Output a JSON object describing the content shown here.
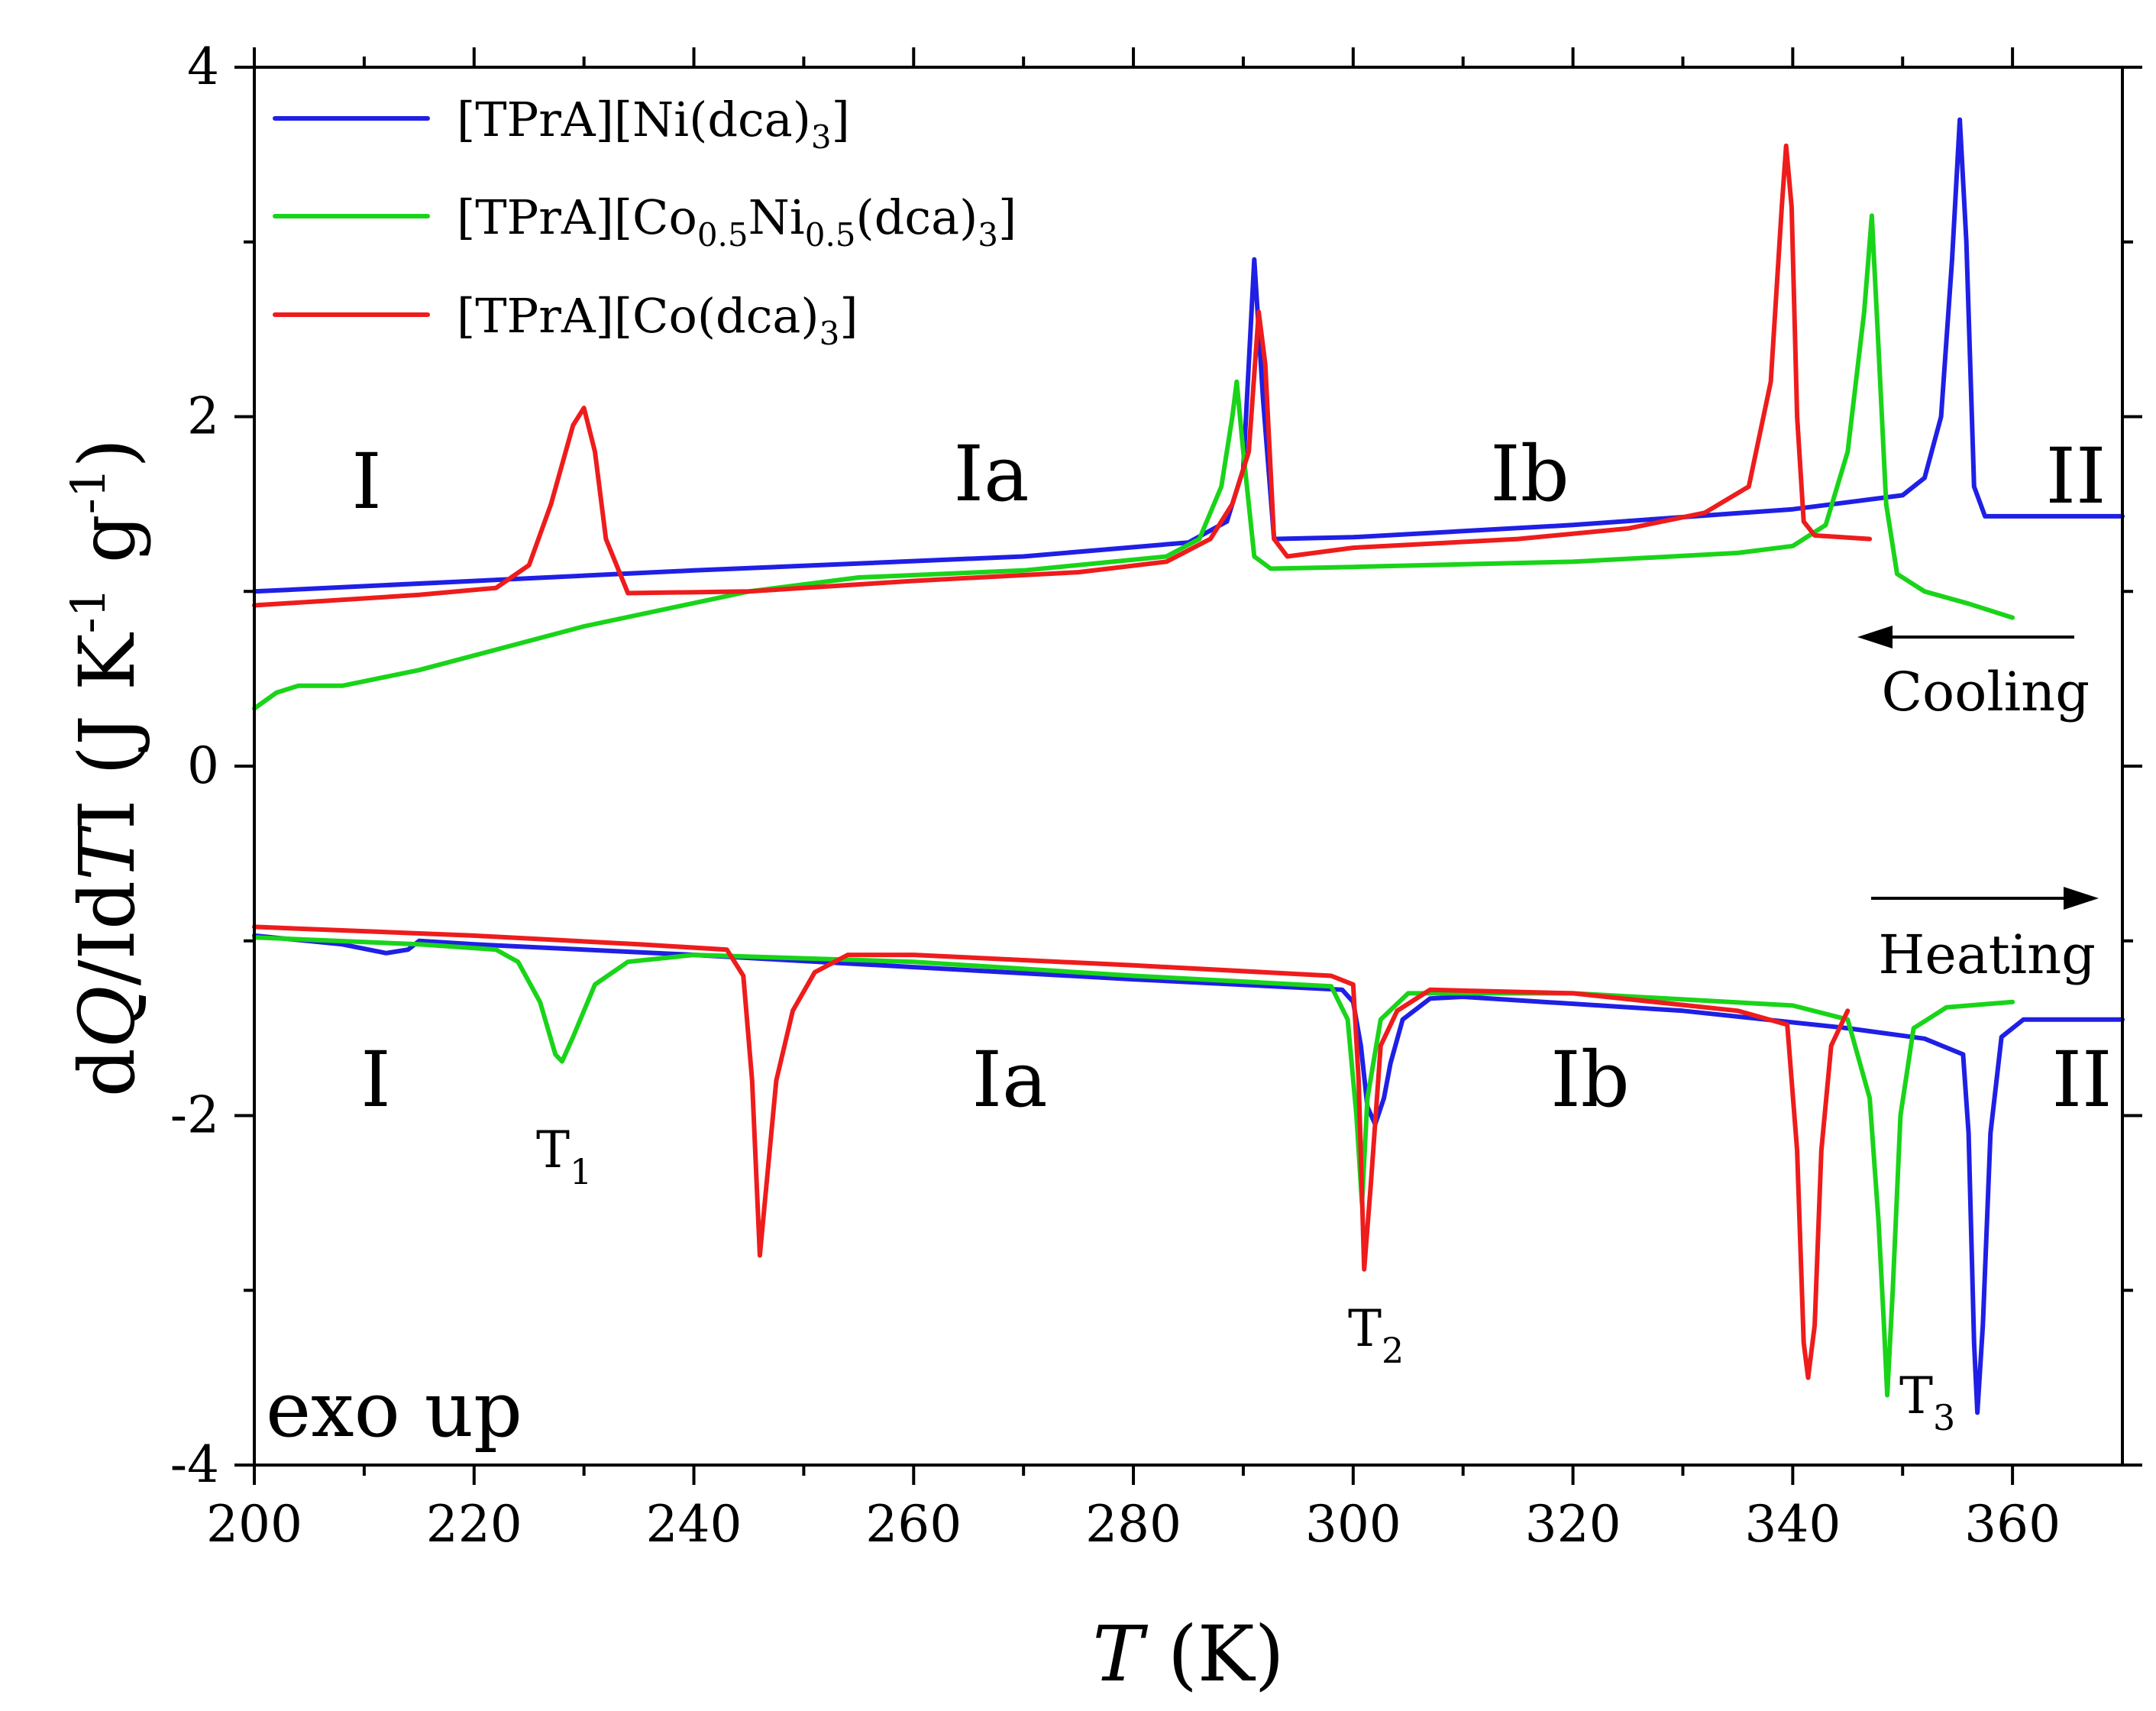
{
  "chart_data": {
    "type": "line",
    "title": "",
    "xlabel": {
      "italic": "T",
      "rest": " (K)"
    },
    "ylabel": {
      "d1": "d",
      "Q": "Q",
      "mid": "/Id",
      "T": "T",
      "tail": "I (J K",
      "sup1": "-1",
      "g": " g",
      "sup2": "-1",
      "close": ")"
    },
    "xlim": [
      200,
      370
    ],
    "ylim": [
      -4,
      4
    ],
    "xticks": [
      "200",
      "220",
      "240",
      "260",
      "280",
      "300",
      "320",
      "340",
      "360"
    ],
    "yticks": [
      "-4",
      "-2",
      "0",
      "2",
      "4"
    ],
    "colors": {
      "ni": "#1f1fe6",
      "coni": "#19d419",
      "co": "#ee1c1c"
    },
    "legend": [
      {
        "key": "ni",
        "parts": [
          {
            "t": "[TPrA][Ni(dca)"
          },
          {
            "t": "3",
            "sub": true
          },
          {
            "t": "]"
          }
        ]
      },
      {
        "key": "coni",
        "parts": [
          {
            "t": "[TPrA][Co"
          },
          {
            "t": "0.5",
            "sub": true
          },
          {
            "t": "Ni"
          },
          {
            "t": "0.5",
            "sub": true
          },
          {
            "t": "(dca)"
          },
          {
            "t": "3",
            "sub": true
          },
          {
            "t": "]"
          }
        ]
      },
      {
        "key": "co",
        "parts": [
          {
            "t": "[TPrA][Co(dca)"
          },
          {
            "t": "3",
            "sub": true
          },
          {
            "t": "]"
          }
        ]
      }
    ],
    "annotations": {
      "cooling": "Cooling",
      "heating": "Heating",
      "exo": "exo up",
      "phases_cooling": [
        "I",
        "Ia",
        "Ib",
        "II"
      ],
      "phases_heating": [
        "I",
        "Ia",
        "Ib",
        "II"
      ],
      "T1": {
        "base": "T",
        "sub": "1"
      },
      "T2": {
        "base": "T",
        "sub": "2"
      },
      "T3": {
        "base": "T",
        "sub": "3"
      }
    },
    "series": [
      {
        "key": "ni",
        "name": "[TPrA][Ni(dca)3] cooling",
        "points": [
          [
            200,
            1.0
          ],
          [
            240,
            1.12
          ],
          [
            270,
            1.2
          ],
          [
            285,
            1.28
          ],
          [
            288.5,
            1.4
          ],
          [
            290,
            1.7
          ],
          [
            291,
            2.9
          ],
          [
            291.8,
            2.1
          ],
          [
            292.8,
            1.3
          ],
          [
            300,
            1.31
          ],
          [
            320,
            1.38
          ],
          [
            340,
            1.47
          ],
          [
            350,
            1.55
          ],
          [
            352,
            1.65
          ],
          [
            353.5,
            2.0
          ],
          [
            354.5,
            2.9
          ],
          [
            355.2,
            3.7
          ],
          [
            355.8,
            3.0
          ],
          [
            356.5,
            1.6
          ],
          [
            357.5,
            1.43
          ],
          [
            370,
            1.43
          ]
        ]
      },
      {
        "key": "coni",
        "name": "[TPrA][Co0.5Ni0.5(dca)3] cooling",
        "points": [
          [
            200,
            0.33
          ],
          [
            202,
            0.42
          ],
          [
            204,
            0.46
          ],
          [
            208,
            0.46
          ],
          [
            215,
            0.55
          ],
          [
            230,
            0.8
          ],
          [
            245,
            1.0
          ],
          [
            255,
            1.08
          ],
          [
            270,
            1.12
          ],
          [
            283,
            1.2
          ],
          [
            286,
            1.3
          ],
          [
            288,
            1.6
          ],
          [
            289,
            2.0
          ],
          [
            289.4,
            2.2
          ],
          [
            290,
            1.8
          ],
          [
            291,
            1.2
          ],
          [
            292.5,
            1.13
          ],
          [
            300,
            1.14
          ],
          [
            320,
            1.17
          ],
          [
            335,
            1.22
          ],
          [
            340,
            1.26
          ],
          [
            343,
            1.38
          ],
          [
            345,
            1.8
          ],
          [
            346.5,
            2.6
          ],
          [
            347.2,
            3.15
          ],
          [
            347.8,
            2.4
          ],
          [
            348.5,
            1.5
          ],
          [
            349.5,
            1.1
          ],
          [
            352,
            1.0
          ],
          [
            356,
            0.93
          ],
          [
            360,
            0.85
          ]
        ]
      },
      {
        "key": "co",
        "name": "[TPrA][Co(dca)3] cooling",
        "points": [
          [
            200,
            0.92
          ],
          [
            215,
            0.98
          ],
          [
            222,
            1.02
          ],
          [
            225,
            1.15
          ],
          [
            227,
            1.5
          ],
          [
            229,
            1.95
          ],
          [
            230,
            2.05
          ],
          [
            231,
            1.8
          ],
          [
            232,
            1.3
          ],
          [
            234,
            0.99
          ],
          [
            245,
            1.0
          ],
          [
            260,
            1.06
          ],
          [
            275,
            1.11
          ],
          [
            283,
            1.17
          ],
          [
            287,
            1.3
          ],
          [
            289,
            1.5
          ],
          [
            290.5,
            1.8
          ],
          [
            291.4,
            2.6
          ],
          [
            292,
            2.3
          ],
          [
            292.8,
            1.3
          ],
          [
            294,
            1.2
          ],
          [
            300,
            1.25
          ],
          [
            315,
            1.3
          ],
          [
            325,
            1.36
          ],
          [
            332,
            1.45
          ],
          [
            336,
            1.6
          ],
          [
            338,
            2.2
          ],
          [
            339,
            3.2
          ],
          [
            339.4,
            3.55
          ],
          [
            339.9,
            3.2
          ],
          [
            340.4,
            2.0
          ],
          [
            341,
            1.4
          ],
          [
            342,
            1.32
          ],
          [
            347,
            1.3
          ]
        ]
      },
      {
        "key": "ni",
        "name": "[TPrA][Ni(dca)3] heating",
        "points": [
          [
            200,
            -0.97
          ],
          [
            208,
            -1.02
          ],
          [
            212,
            -1.07
          ],
          [
            214,
            -1.05
          ],
          [
            215,
            -1.0
          ],
          [
            220,
            -1.02
          ],
          [
            240,
            -1.08
          ],
          [
            260,
            -1.15
          ],
          [
            280,
            -1.22
          ],
          [
            299,
            -1.28
          ],
          [
            300,
            -1.35
          ],
          [
            300.7,
            -1.6
          ],
          [
            301.3,
            -1.95
          ],
          [
            302,
            -2.05
          ],
          [
            302.8,
            -1.9
          ],
          [
            303.4,
            -1.7
          ],
          [
            304.5,
            -1.45
          ],
          [
            307,
            -1.33
          ],
          [
            310,
            -1.32
          ],
          [
            330,
            -1.4
          ],
          [
            345,
            -1.5
          ],
          [
            352,
            -1.56
          ],
          [
            355.5,
            -1.65
          ],
          [
            356,
            -2.1
          ],
          [
            356.5,
            -3.3
          ],
          [
            356.8,
            -3.7
          ],
          [
            357.3,
            -3.2
          ],
          [
            358,
            -2.1
          ],
          [
            359,
            -1.55
          ],
          [
            361,
            -1.45
          ],
          [
            370,
            -1.45
          ]
        ]
      },
      {
        "key": "coni",
        "name": "[TPrA][Co0.5Ni0.5(dca)3] heating",
        "points": [
          [
            200,
            -0.98
          ],
          [
            215,
            -1.02
          ],
          [
            222,
            -1.05
          ],
          [
            224,
            -1.12
          ],
          [
            226,
            -1.35
          ],
          [
            227.4,
            -1.65
          ],
          [
            228,
            -1.69
          ],
          [
            229,
            -1.55
          ],
          [
            231,
            -1.25
          ],
          [
            234,
            -1.12
          ],
          [
            240,
            -1.08
          ],
          [
            260,
            -1.12
          ],
          [
            280,
            -1.2
          ],
          [
            298,
            -1.26
          ],
          [
            299.5,
            -1.45
          ],
          [
            300.3,
            -2.0
          ],
          [
            300.8,
            -2.5
          ],
          [
            301.3,
            -1.9
          ],
          [
            302.5,
            -1.45
          ],
          [
            305,
            -1.3
          ],
          [
            320,
            -1.3
          ],
          [
            340,
            -1.37
          ],
          [
            345,
            -1.45
          ],
          [
            347,
            -1.9
          ],
          [
            347.8,
            -2.6
          ],
          [
            348.3,
            -3.2
          ],
          [
            348.6,
            -3.6
          ],
          [
            349.1,
            -3.0
          ],
          [
            349.8,
            -2.0
          ],
          [
            351,
            -1.5
          ],
          [
            354,
            -1.38
          ],
          [
            360,
            -1.35
          ]
        ]
      },
      {
        "key": "co",
        "name": "[TPrA][Co(dca)3] heating",
        "points": [
          [
            200,
            -0.92
          ],
          [
            220,
            -0.97
          ],
          [
            235,
            -1.02
          ],
          [
            243,
            -1.05
          ],
          [
            244.5,
            -1.2
          ],
          [
            245.3,
            -1.8
          ],
          [
            246,
            -2.8
          ],
          [
            246.6,
            -2.4
          ],
          [
            247.5,
            -1.8
          ],
          [
            249,
            -1.4
          ],
          [
            251,
            -1.18
          ],
          [
            254,
            -1.08
          ],
          [
            260,
            -1.08
          ],
          [
            280,
            -1.14
          ],
          [
            298,
            -1.2
          ],
          [
            300,
            -1.25
          ],
          [
            300.5,
            -1.8
          ],
          [
            301,
            -2.88
          ],
          [
            301.6,
            -2.4
          ],
          [
            302.5,
            -1.6
          ],
          [
            304,
            -1.4
          ],
          [
            307,
            -1.28
          ],
          [
            320,
            -1.3
          ],
          [
            335,
            -1.4
          ],
          [
            339.5,
            -1.48
          ],
          [
            340.4,
            -2.2
          ],
          [
            341,
            -3.3
          ],
          [
            341.4,
            -3.5
          ],
          [
            342,
            -3.2
          ],
          [
            342.6,
            -2.2
          ],
          [
            343.5,
            -1.6
          ],
          [
            345,
            -1.4
          ]
        ]
      }
    ]
  }
}
